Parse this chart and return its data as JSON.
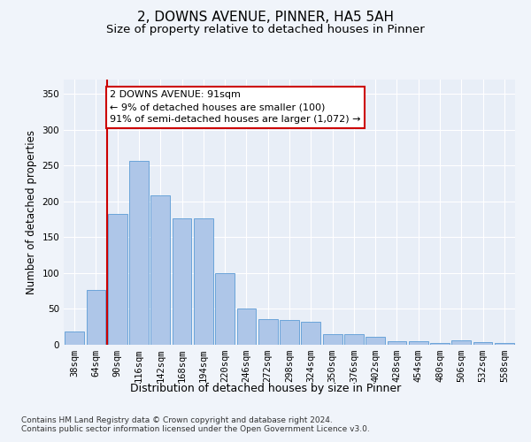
{
  "title": "2, DOWNS AVENUE, PINNER, HA5 5AH",
  "subtitle": "Size of property relative to detached houses in Pinner",
  "xlabel": "Distribution of detached houses by size in Pinner",
  "ylabel": "Number of detached properties",
  "bar_labels": [
    "38sqm",
    "64sqm",
    "90sqm",
    "116sqm",
    "142sqm",
    "168sqm",
    "194sqm",
    "220sqm",
    "246sqm",
    "272sqm",
    "298sqm",
    "324sqm",
    "350sqm",
    "376sqm",
    "402sqm",
    "428sqm",
    "454sqm",
    "480sqm",
    "506sqm",
    "532sqm",
    "558sqm"
  ],
  "bar_values": [
    19,
    76,
    182,
    257,
    208,
    176,
    176,
    100,
    50,
    36,
    35,
    32,
    15,
    15,
    11,
    5,
    5,
    3,
    6,
    4,
    3
  ],
  "bar_color": "#aec6e8",
  "bar_edge_color": "#5b9bd5",
  "vline_color": "#cc0000",
  "annotation_text": "2 DOWNS AVENUE: 91sqm\n← 9% of detached houses are smaller (100)\n91% of semi-detached houses are larger (1,072) →",
  "annotation_box_color": "#ffffff",
  "annotation_box_edge": "#cc0000",
  "ylim": [
    0,
    370
  ],
  "yticks": [
    0,
    50,
    100,
    150,
    200,
    250,
    300,
    350
  ],
  "fig_bg_color": "#f0f4fa",
  "ax_bg_color": "#e8eef7",
  "footnote": "Contains HM Land Registry data © Crown copyright and database right 2024.\nContains public sector information licensed under the Open Government Licence v3.0.",
  "title_fontsize": 11,
  "subtitle_fontsize": 9.5,
  "xlabel_fontsize": 9,
  "ylabel_fontsize": 8.5,
  "tick_fontsize": 7.5,
  "annotation_fontsize": 8,
  "footnote_fontsize": 6.5
}
